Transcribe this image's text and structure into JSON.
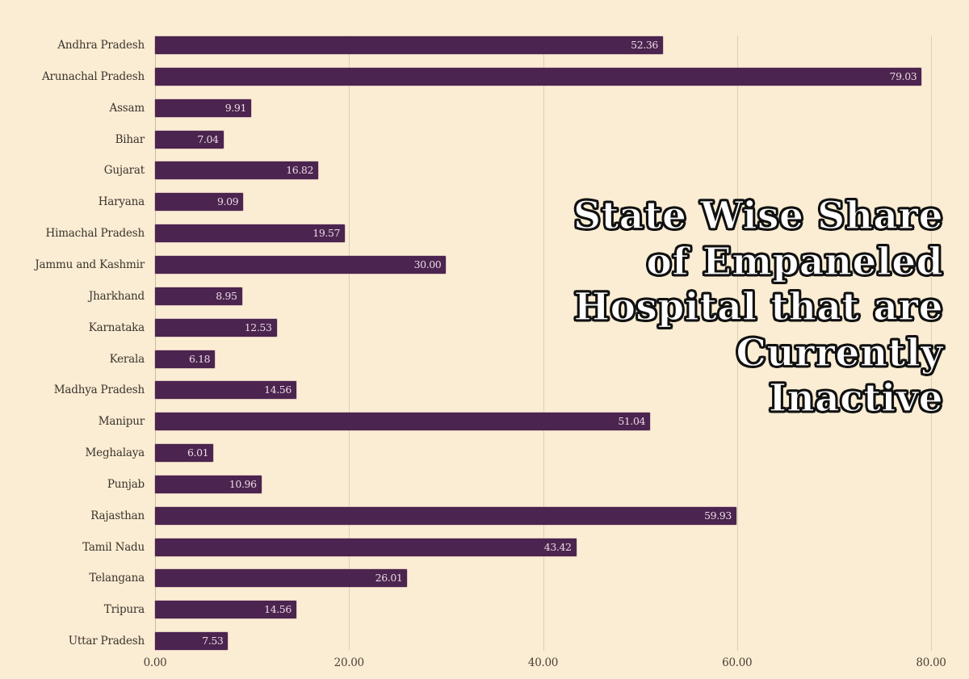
{
  "chart_data": {
    "type": "bar",
    "orientation": "horizontal",
    "title": "State Wise Share of Empaneled Hospital that are Currently Inactive",
    "title_lines": [
      "State Wise Share",
      "of Empaneled",
      "Hospital that are",
      "Currently",
      "Inactive"
    ],
    "xlabel": "",
    "ylabel": "",
    "xlim": [
      0,
      80
    ],
    "grid": true,
    "legend": null,
    "x_ticks": [
      "0.00",
      "20.00",
      "40.00",
      "60.00",
      "80.00"
    ],
    "categories": [
      "Andhra Pradesh",
      "Arunachal Pradesh",
      "Assam",
      "Bihar",
      "Gujarat",
      "Haryana",
      "Himachal Pradesh",
      "Jammu and Kashmir",
      "Jharkhand",
      "Karnataka",
      "Kerala",
      "Madhya Pradesh",
      "Manipur",
      "Meghalaya",
      "Punjab",
      "Rajasthan",
      "Tamil Nadu",
      "Telangana",
      "Tripura",
      "Uttar Pradesh"
    ],
    "values": [
      52.36,
      79.03,
      9.91,
      7.04,
      16.82,
      9.09,
      19.57,
      30.0,
      8.95,
      12.53,
      6.18,
      14.56,
      51.04,
      6.01,
      10.96,
      59.93,
      43.42,
      26.01,
      14.56,
      7.53
    ],
    "value_labels": [
      "52.36",
      "79.03",
      "9.91",
      "7.04",
      "16.82",
      "9.09",
      "19.57",
      "30.00",
      "8.95",
      "12.53",
      "6.18",
      "14.56",
      "51.04",
      "6.01",
      "10.96",
      "59.93",
      "43.42",
      "26.01",
      "14.56",
      "7.53"
    ],
    "colors": {
      "background": "#fbedd3",
      "bar": "#4b244f",
      "bar_label": "#eadbe4",
      "gridline": "#dccfb4",
      "title_fill": "#ffffff",
      "title_outline": "#111111"
    }
  }
}
